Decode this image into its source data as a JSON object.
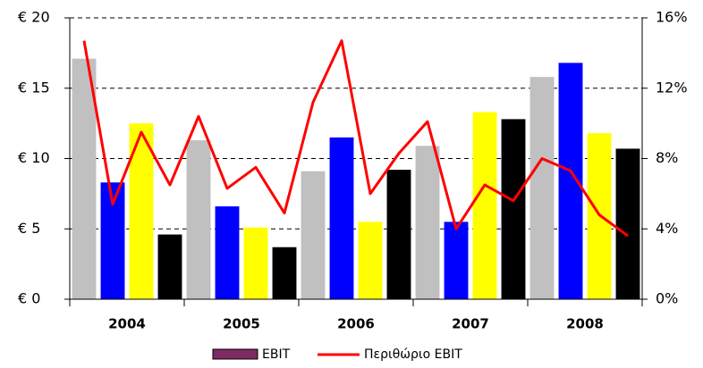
{
  "chart_data": {
    "type": "bar-line",
    "groups": [
      "2004",
      "2005",
      "2006",
      "2007",
      "2008"
    ],
    "bar_colors": [
      "#c0c0c0",
      "#0000ff",
      "#ffff00",
      "#000000"
    ],
    "series": [
      {
        "name": "EBIT",
        "color": "#7f2a62",
        "values": [
          17.1,
          8.3,
          12.5,
          4.6,
          11.3,
          6.6,
          5.1,
          3.7,
          9.1,
          11.5,
          5.5,
          9.2,
          10.9,
          5.5,
          13.3,
          12.8,
          15.8,
          16.8,
          11.8,
          10.7
        ]
      },
      {
        "name": "Περιθώριο EBIT",
        "color": "#ff0000",
        "axis": "y2",
        "values": [
          14.7,
          5.4,
          9.5,
          6.5,
          10.4,
          6.3,
          7.5,
          4.9,
          11.2,
          14.7,
          6.0,
          8.3,
          10.1,
          4.0,
          6.5,
          5.6,
          8.0,
          7.3,
          4.8,
          3.6
        ]
      }
    ],
    "ylim": [
      0,
      20
    ],
    "yticks": [
      {
        "value": 0,
        "label": "€ 0"
      },
      {
        "value": 5,
        "label": "€ 5"
      },
      {
        "value": 10,
        "label": "€ 10"
      },
      {
        "value": 15,
        "label": "€ 15"
      },
      {
        "value": 20,
        "label": "€ 20"
      }
    ],
    "y2lim": [
      0,
      16
    ],
    "y2ticks": [
      {
        "value": 0,
        "label": "0%"
      },
      {
        "value": 4,
        "label": "4%"
      },
      {
        "value": 8,
        "label": "8%"
      },
      {
        "value": 12,
        "label": "12%"
      },
      {
        "value": 16,
        "label": "16%"
      }
    ],
    "grid": true,
    "legend": "bottom"
  }
}
